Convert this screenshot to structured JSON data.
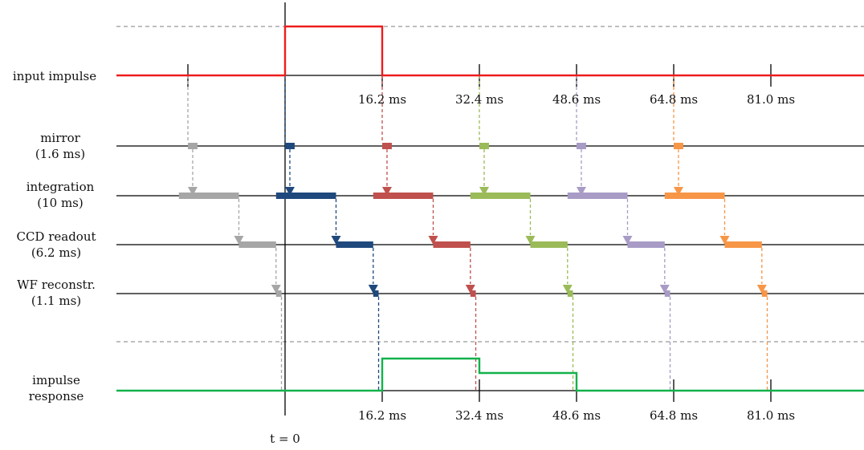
{
  "row_labels": {
    "input": "input impulse",
    "mirror": [
      "mirror",
      "(1.6 ms)"
    ],
    "integration": [
      "integration",
      "(10 ms)"
    ],
    "ccd": [
      "CCD readout",
      "(6.2 ms)"
    ],
    "wf": [
      "WF reconstr.",
      "(1.1 ms)"
    ],
    "response": [
      "impulse",
      "response"
    ]
  },
  "tick_labels_top": [
    "16.2 ms",
    "32.4 ms",
    "48.6 ms",
    "64.8 ms",
    "81.0 ms"
  ],
  "tick_labels_bottom": [
    "16.2 ms",
    "32.4 ms",
    "48.6 ms",
    "64.8 ms",
    "81.0 ms"
  ],
  "t0_label": "t = 0",
  "frame_period_ms": 16.2,
  "durations_ms": {
    "mirror": 1.6,
    "integration": 10,
    "ccd_readout": 6.2,
    "wf_reconstruction": 1.1
  },
  "input_impulse": {
    "start_ms": 0,
    "end_ms": 16.2
  },
  "impulse_response": [
    {
      "from_ms": 16.2,
      "to_ms": 32.4,
      "level": "high"
    },
    {
      "from_ms": 32.4,
      "to_ms": 48.6,
      "level": "medium"
    }
  ],
  "cycle_colors": [
    "#a6a6a6",
    "#1f497d",
    "#c0504d",
    "#9bbb59",
    "#a89bc6",
    "#f79646"
  ],
  "colors": {
    "input_signal": "#ee1c1c",
    "response_signal": "#12b24b",
    "axis": "#000000",
    "separator": "#999999"
  }
}
